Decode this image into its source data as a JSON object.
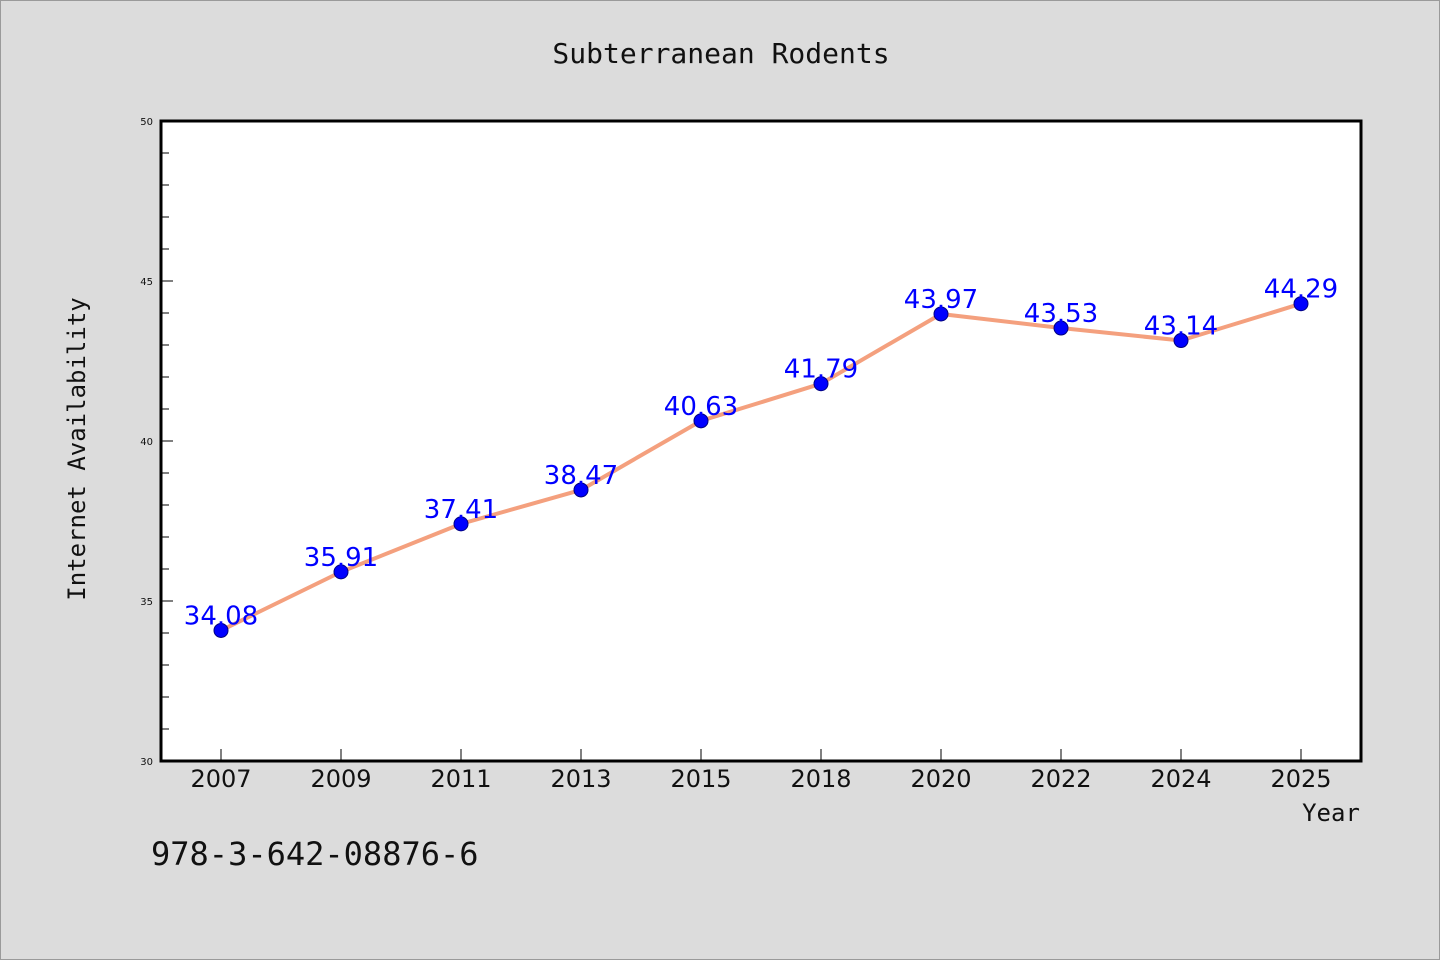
{
  "chart_data": {
    "type": "line",
    "title": "Subterranean Rodents",
    "xlabel": "Year",
    "ylabel": "Internet Availability",
    "categories": [
      "2007",
      "2009",
      "2011",
      "2013",
      "2015",
      "2018",
      "2020",
      "2022",
      "2024",
      "2025"
    ],
    "series": [
      {
        "values": [
          34.08,
          35.91,
          37.41,
          38.47,
          40.63,
          41.79,
          43.97,
          43.53,
          43.14,
          44.29
        ],
        "labels": [
          "34.08",
          "35.91",
          "37.41",
          "38.47",
          "40.63",
          "41.79",
          "43.97",
          "43.53",
          "43.14",
          "44.29"
        ],
        "line_color": "#f4a07e",
        "marker_color": "#0000ff",
        "label_color": "#0000ff"
      }
    ],
    "ylim": [
      30,
      50
    ],
    "yticks": [
      30,
      35,
      40,
      45,
      50
    ],
    "ytick_labels": [
      "30",
      "35",
      "40",
      "45",
      "50"
    ],
    "grid": false,
    "legend": "none"
  },
  "caption": "978-3-642-08876-6",
  "colors": {
    "background": "#dcdcdc",
    "plot_background": "#ffffff",
    "axis": "#000000"
  }
}
